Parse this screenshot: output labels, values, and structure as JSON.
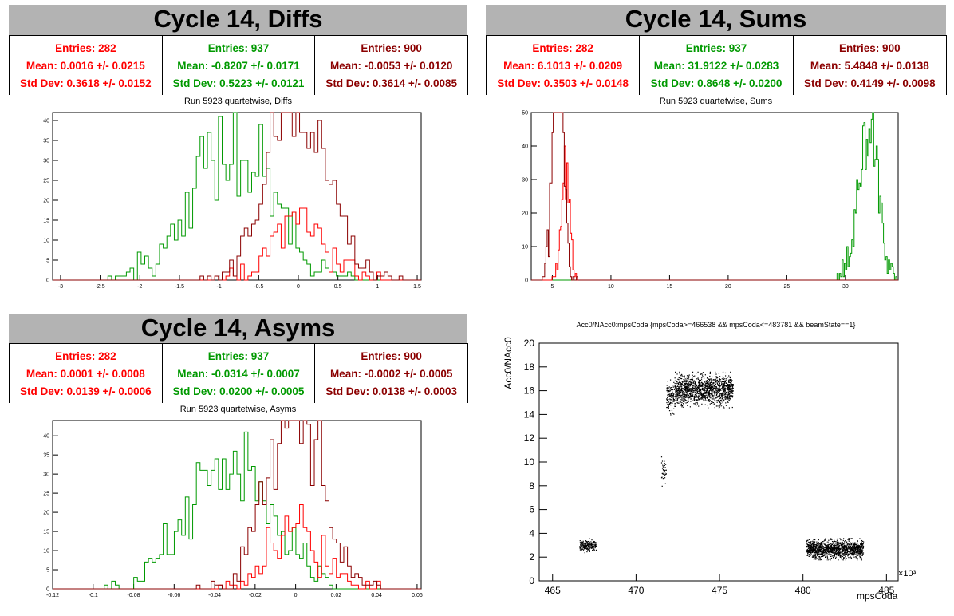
{
  "colors": {
    "red": "#ff0000",
    "green": "#009900",
    "darkred": "#8b0000",
    "black": "#000000"
  },
  "diffs": {
    "title": "Cycle 14, Diffs",
    "subtitle": "Run 5923 quartetwise, Diffs",
    "stats": [
      {
        "entries": "Entries: 282",
        "mean": "Mean: 0.0016 +/- 0.0215",
        "std": "Std Dev: 0.3618 +/- 0.0152",
        "color": "#ff0000"
      },
      {
        "entries": "Entries: 937",
        "mean": "Mean: -0.8207 +/- 0.0171",
        "std": "Std Dev: 0.5223 +/- 0.0121",
        "color": "#009900"
      },
      {
        "entries": "Entries: 900",
        "mean": "Mean: -0.0053 +/- 0.0120",
        "std": "Std Dev: 0.3614 +/- 0.0085",
        "color": "#8b0000"
      }
    ]
  },
  "sums": {
    "title": "Cycle 14, Sums",
    "subtitle": "Run 5923 quartetwise, Sums",
    "stats": [
      {
        "entries": "Entries: 282",
        "mean": "Mean: 6.1013 +/- 0.0209",
        "std": "Std Dev: 0.3503 +/- 0.0148",
        "color": "#ff0000"
      },
      {
        "entries": "Entries: 937",
        "mean": "Mean: 31.9122 +/- 0.0283",
        "std": "Std Dev: 0.8648 +/- 0.0200",
        "color": "#009900"
      },
      {
        "entries": "Entries: 900",
        "mean": "Mean: 5.4848 +/- 0.0138",
        "std": "Std Dev: 0.4149 +/- 0.0098",
        "color": "#8b0000"
      }
    ]
  },
  "asyms": {
    "title": "Cycle 14, Asyms",
    "subtitle": "Run 5923 quartetwise, Asyms",
    "stats": [
      {
        "entries": "Entries: 282",
        "mean": "Mean: 0.0001 +/- 0.0008",
        "std": "Std Dev: 0.0139 +/- 0.0006",
        "color": "#ff0000"
      },
      {
        "entries": "Entries: 937",
        "mean": "Mean: -0.0314 +/- 0.0007",
        "std": "Std Dev: 0.0200 +/- 0.0005",
        "color": "#009900"
      },
      {
        "entries": "Entries: 900",
        "mean": "Mean: -0.0002 +/- 0.0005",
        "std": "Std Dev: 0.0138 +/- 0.0003",
        "color": "#8b0000"
      }
    ]
  },
  "scatter_title": "Acc0/NAcc0:mpsCoda {mpsCoda>=466538 && mpsCoda<=483781 && beamState==1}",
  "chart_data": [
    {
      "type": "histogram",
      "name": "diffs",
      "xlim": [
        -3.1,
        1.55
      ],
      "ylim": [
        0,
        42
      ],
      "xticks": [
        -3,
        -2.5,
        -2,
        -1.5,
        -1,
        -0.5,
        0,
        0.5,
        1,
        1.5
      ],
      "xtick_labels": [
        "-3",
        "-2.5",
        "-2",
        "-1.5",
        "-1",
        "-0.5",
        "0",
        "0.5",
        "1",
        "1.5"
      ],
      "yticks": [
        0,
        5,
        10,
        15,
        20,
        25,
        30,
        35,
        40
      ],
      "series": [
        {
          "color": "#009900",
          "mean": -0.8207,
          "std": 0.5223,
          "entries": 937
        },
        {
          "color": "#ff0000",
          "mean": 0.0016,
          "std": 0.3618,
          "entries": 282
        },
        {
          "color": "#8b0000",
          "mean": -0.0053,
          "std": 0.3614,
          "entries": 900
        }
      ]
    },
    {
      "type": "histogram",
      "name": "sums",
      "xlim": [
        3.2,
        34.5
      ],
      "ylim": [
        0,
        50
      ],
      "xticks": [
        5,
        10,
        15,
        20,
        25,
        30
      ],
      "xtick_labels": [
        "5",
        "10",
        "15",
        "20",
        "25",
        "30"
      ],
      "yticks": [
        0,
        10,
        20,
        30,
        40,
        50
      ],
      "series": [
        {
          "color": "#009900",
          "mean": 31.9122,
          "std": 0.8648,
          "entries": 937
        },
        {
          "color": "#ff0000",
          "mean": 6.1013,
          "std": 0.3503,
          "entries": 282
        },
        {
          "color": "#8b0000",
          "mean": 5.4848,
          "std": 0.4149,
          "entries": 900
        }
      ]
    },
    {
      "type": "histogram",
      "name": "asyms",
      "xlim": [
        -0.12,
        0.062
      ],
      "ylim": [
        0,
        44
      ],
      "xticks": [
        -0.12,
        -0.1,
        -0.08,
        -0.06,
        -0.04,
        -0.02,
        0,
        0.02,
        0.04,
        0.06
      ],
      "xtick_labels": [
        "-0.12",
        "-0.1",
        "-0.08",
        "-0.06",
        "-0.04",
        "-0.02",
        "0",
        "0.02",
        "0.04",
        "0.06"
      ],
      "yticks": [
        0,
        5,
        10,
        15,
        20,
        25,
        30,
        35,
        40
      ],
      "series": [
        {
          "color": "#009900",
          "mean": -0.0314,
          "std": 0.02,
          "entries": 937
        },
        {
          "color": "#ff0000",
          "mean": 0.0001,
          "std": 0.0139,
          "entries": 282
        },
        {
          "color": "#8b0000",
          "mean": -0.0002,
          "std": 0.0138,
          "entries": 900
        }
      ]
    },
    {
      "type": "scatter",
      "name": "acc0",
      "xlabel": "mpsCoda",
      "ylabel": "Acc0/NAcc0",
      "x_exponent": "×10³",
      "xlim": [
        464.2,
        485.7
      ],
      "ylim": [
        0,
        20
      ],
      "xticks": [
        465,
        470,
        475,
        480,
        485
      ],
      "yticks": [
        0,
        2,
        4,
        6,
        8,
        10,
        12,
        14,
        16,
        18,
        20
      ],
      "clusters": [
        {
          "x": [
            466.6,
            467.6
          ],
          "y": [
            2.4,
            3.6
          ],
          "n": 220
        },
        {
          "x": [
            471.5,
            471.8
          ],
          "y": [
            7.8,
            10.6
          ],
          "n": 40
        },
        {
          "x": [
            471.8,
            472.3
          ],
          "y": [
            14.0,
            17.0
          ],
          "n": 120
        },
        {
          "x": [
            472.3,
            475.8
          ],
          "y": [
            14.6,
            17.6
          ],
          "n": 1400
        },
        {
          "x": [
            480.2,
            483.6
          ],
          "y": [
            1.8,
            3.6
          ],
          "n": 1300
        }
      ]
    }
  ]
}
